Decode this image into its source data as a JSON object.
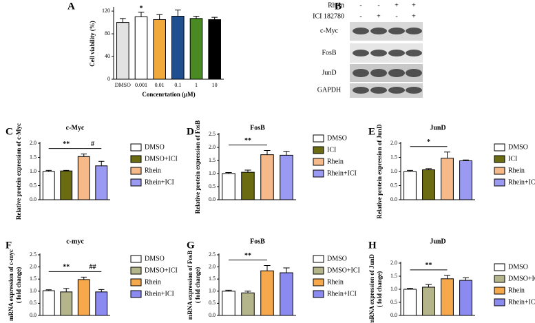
{
  "blot": {
    "panel": "B",
    "conditions": [
      {
        "name": "Rhein",
        "signs": [
          "-",
          "-",
          "+",
          "+"
        ]
      },
      {
        "name": "ICI 182780",
        "signs": [
          "-",
          "+",
          "-",
          "+"
        ]
      }
    ],
    "proteins": [
      "c-Myc",
      "FosB",
      "JunD",
      "GAPDH"
    ]
  },
  "chart_data": [
    {
      "type": "bar",
      "panel": "A",
      "categories": [
        "DMSO",
        "0.001",
        "0.01",
        "0.1",
        "1",
        "10"
      ],
      "values": [
        100,
        110,
        105,
        111,
        107,
        105
      ],
      "errors": [
        7,
        8,
        9,
        11,
        4,
        4
      ],
      "colors": [
        "#e2e2e2",
        "#ffffff",
        "#f2a93b",
        "#1f4f8f",
        "#4a8a22",
        "#000000"
      ],
      "ylim": [
        0,
        125
      ],
      "yticks": [
        0,
        40,
        80,
        120
      ],
      "ylabel": [
        "Cell viability (%)"
      ],
      "xlabel": "Concenrtation (μM)",
      "annotations": [
        {
          "text": "*",
          "from": 1,
          "to": 1
        }
      ]
    },
    {
      "type": "bar",
      "panel": "C",
      "title": "c-Myc",
      "legend": [
        "DMSO",
        "DMSO+ICI",
        "Rhein",
        "Rhein+ICI"
      ],
      "values": [
        1.0,
        1.02,
        1.53,
        1.2
      ],
      "errors": [
        0.04,
        0.02,
        0.09,
        0.16
      ],
      "colors": [
        "#ffffff",
        "#6b6b12",
        "#f5b98a",
        "#9a9af2"
      ],
      "ylim": [
        0,
        2
      ],
      "yticks": [
        {
          "value": 0,
          "label": "0.0"
        },
        0.5,
        {
          "value": 1,
          "label": "1.0"
        },
        1.5,
        {
          "value": 2,
          "label": "2.0"
        }
      ],
      "ylabel": [
        "Relative protein expression of c-Myc"
      ],
      "annotations": [
        {
          "text": "**",
          "from": 0,
          "to": 2
        },
        {
          "text": "#",
          "from": 2,
          "to": 3
        }
      ]
    },
    {
      "type": "bar",
      "panel": "D",
      "title": "FosB",
      "legend": [
        "DMSO",
        "ICI",
        "Rhein",
        "Rhein+ICI"
      ],
      "values": [
        1.0,
        1.05,
        1.72,
        1.7
      ],
      "errors": [
        0.04,
        0.08,
        0.16,
        0.15
      ],
      "colors": [
        "#ffffff",
        "#6b6b12",
        "#f5b98a",
        "#9a9af2"
      ],
      "ylim": [
        0,
        2.5
      ],
      "yticks": [
        {
          "value": 0,
          "label": "0.0"
        },
        0.5,
        {
          "value": 1,
          "label": "1.0"
        },
        1.5,
        {
          "value": 2,
          "label": "2.0"
        },
        2.5
      ],
      "ylabel": [
        "Relative protein expression of FosB"
      ],
      "annotations": [
        {
          "text": "**",
          "from": 0,
          "to": 2
        }
      ]
    },
    {
      "type": "bar",
      "panel": "E",
      "title": "JunD",
      "legend": [
        "DMSO",
        "ICI",
        "Rhein",
        "Rhein+ICI"
      ],
      "values": [
        1.0,
        1.06,
        1.47,
        1.38
      ],
      "errors": [
        0.04,
        0.04,
        0.22,
        0.03
      ],
      "colors": [
        "#ffffff",
        "#6b6b12",
        "#f5b98a",
        "#9a9af2"
      ],
      "ylim": [
        0,
        2
      ],
      "yticks": [
        {
          "value": 0,
          "label": "0.0"
        },
        0.5,
        {
          "value": 1,
          "label": "1.0"
        },
        1.5,
        {
          "value": 2,
          "label": "2.0"
        }
      ],
      "ylabel": [
        "Relative protein expression of JunD"
      ],
      "annotations": [
        {
          "text": "*",
          "from": 0,
          "to": 2
        }
      ]
    },
    {
      "type": "bar",
      "panel": "F",
      "title": "c-myc",
      "legend": [
        "DMSO",
        "DMSO+ICI",
        "Rhein",
        "Rhein+ICI"
      ],
      "values": [
        1.02,
        0.97,
        1.48,
        0.97
      ],
      "errors": [
        0.04,
        0.14,
        0.1,
        0.1
      ],
      "colors": [
        "#ffffff",
        "#b5b58c",
        "#f5a84c",
        "#8a8af0"
      ],
      "ylim": [
        0,
        2.5
      ],
      "yticks": [
        {
          "value": 0,
          "label": "0.0"
        },
        0.5,
        {
          "value": 1,
          "label": "1.0"
        },
        1.5,
        {
          "value": 2,
          "label": "2.0"
        },
        2.5
      ],
      "ylabel": [
        "mRNA expression of c-myc",
        "( fold change)"
      ],
      "annotations": [
        {
          "text": "**",
          "from": 0,
          "to": 2
        },
        {
          "text": "##",
          "from": 2,
          "to": 3
        }
      ]
    },
    {
      "type": "bar",
      "panel": "G",
      "title": "FosB",
      "legend": [
        "DMSO",
        "DMSO+ICI",
        "Rhein",
        "Rhein+ICI"
      ],
      "values": [
        1.0,
        0.93,
        1.84,
        1.76
      ],
      "errors": [
        0.04,
        0.07,
        0.22,
        0.2
      ],
      "colors": [
        "#ffffff",
        "#b5b58c",
        "#f5a84c",
        "#8a8af0"
      ],
      "ylim": [
        0,
        2.5
      ],
      "yticks": [
        {
          "value": 0,
          "label": "0.0"
        },
        0.5,
        {
          "value": 1,
          "label": "1.0"
        },
        1.5,
        {
          "value": 2,
          "label": "2.0"
        },
        2.5
      ],
      "ylabel": [
        "mRNA expression of FosB",
        "( fold change)"
      ],
      "annotations": [
        {
          "text": "**",
          "from": 0,
          "to": 2
        }
      ]
    },
    {
      "type": "bar",
      "panel": "H",
      "title": "JunD",
      "legend": [
        "DMSO",
        "DMSO+ICI",
        "Rhein",
        "Rhein+ICI"
      ],
      "values": [
        1.0,
        1.08,
        1.4,
        1.34
      ],
      "errors": [
        0.04,
        0.1,
        0.13,
        0.1
      ],
      "colors": [
        "#ffffff",
        "#b5b58c",
        "#f5a84c",
        "#8a8af0"
      ],
      "ylim": [
        0,
        2
      ],
      "yticks": [
        {
          "value": 0,
          "label": "0.0"
        },
        0.5,
        {
          "value": 1,
          "label": "1.0"
        },
        1.5,
        {
          "value": 2,
          "label": "2.0"
        }
      ],
      "ylabel": [
        "mRNA expression of JunD",
        "( fold change)"
      ],
      "annotations": [
        {
          "text": "**",
          "from": 0,
          "to": 2
        }
      ]
    }
  ]
}
